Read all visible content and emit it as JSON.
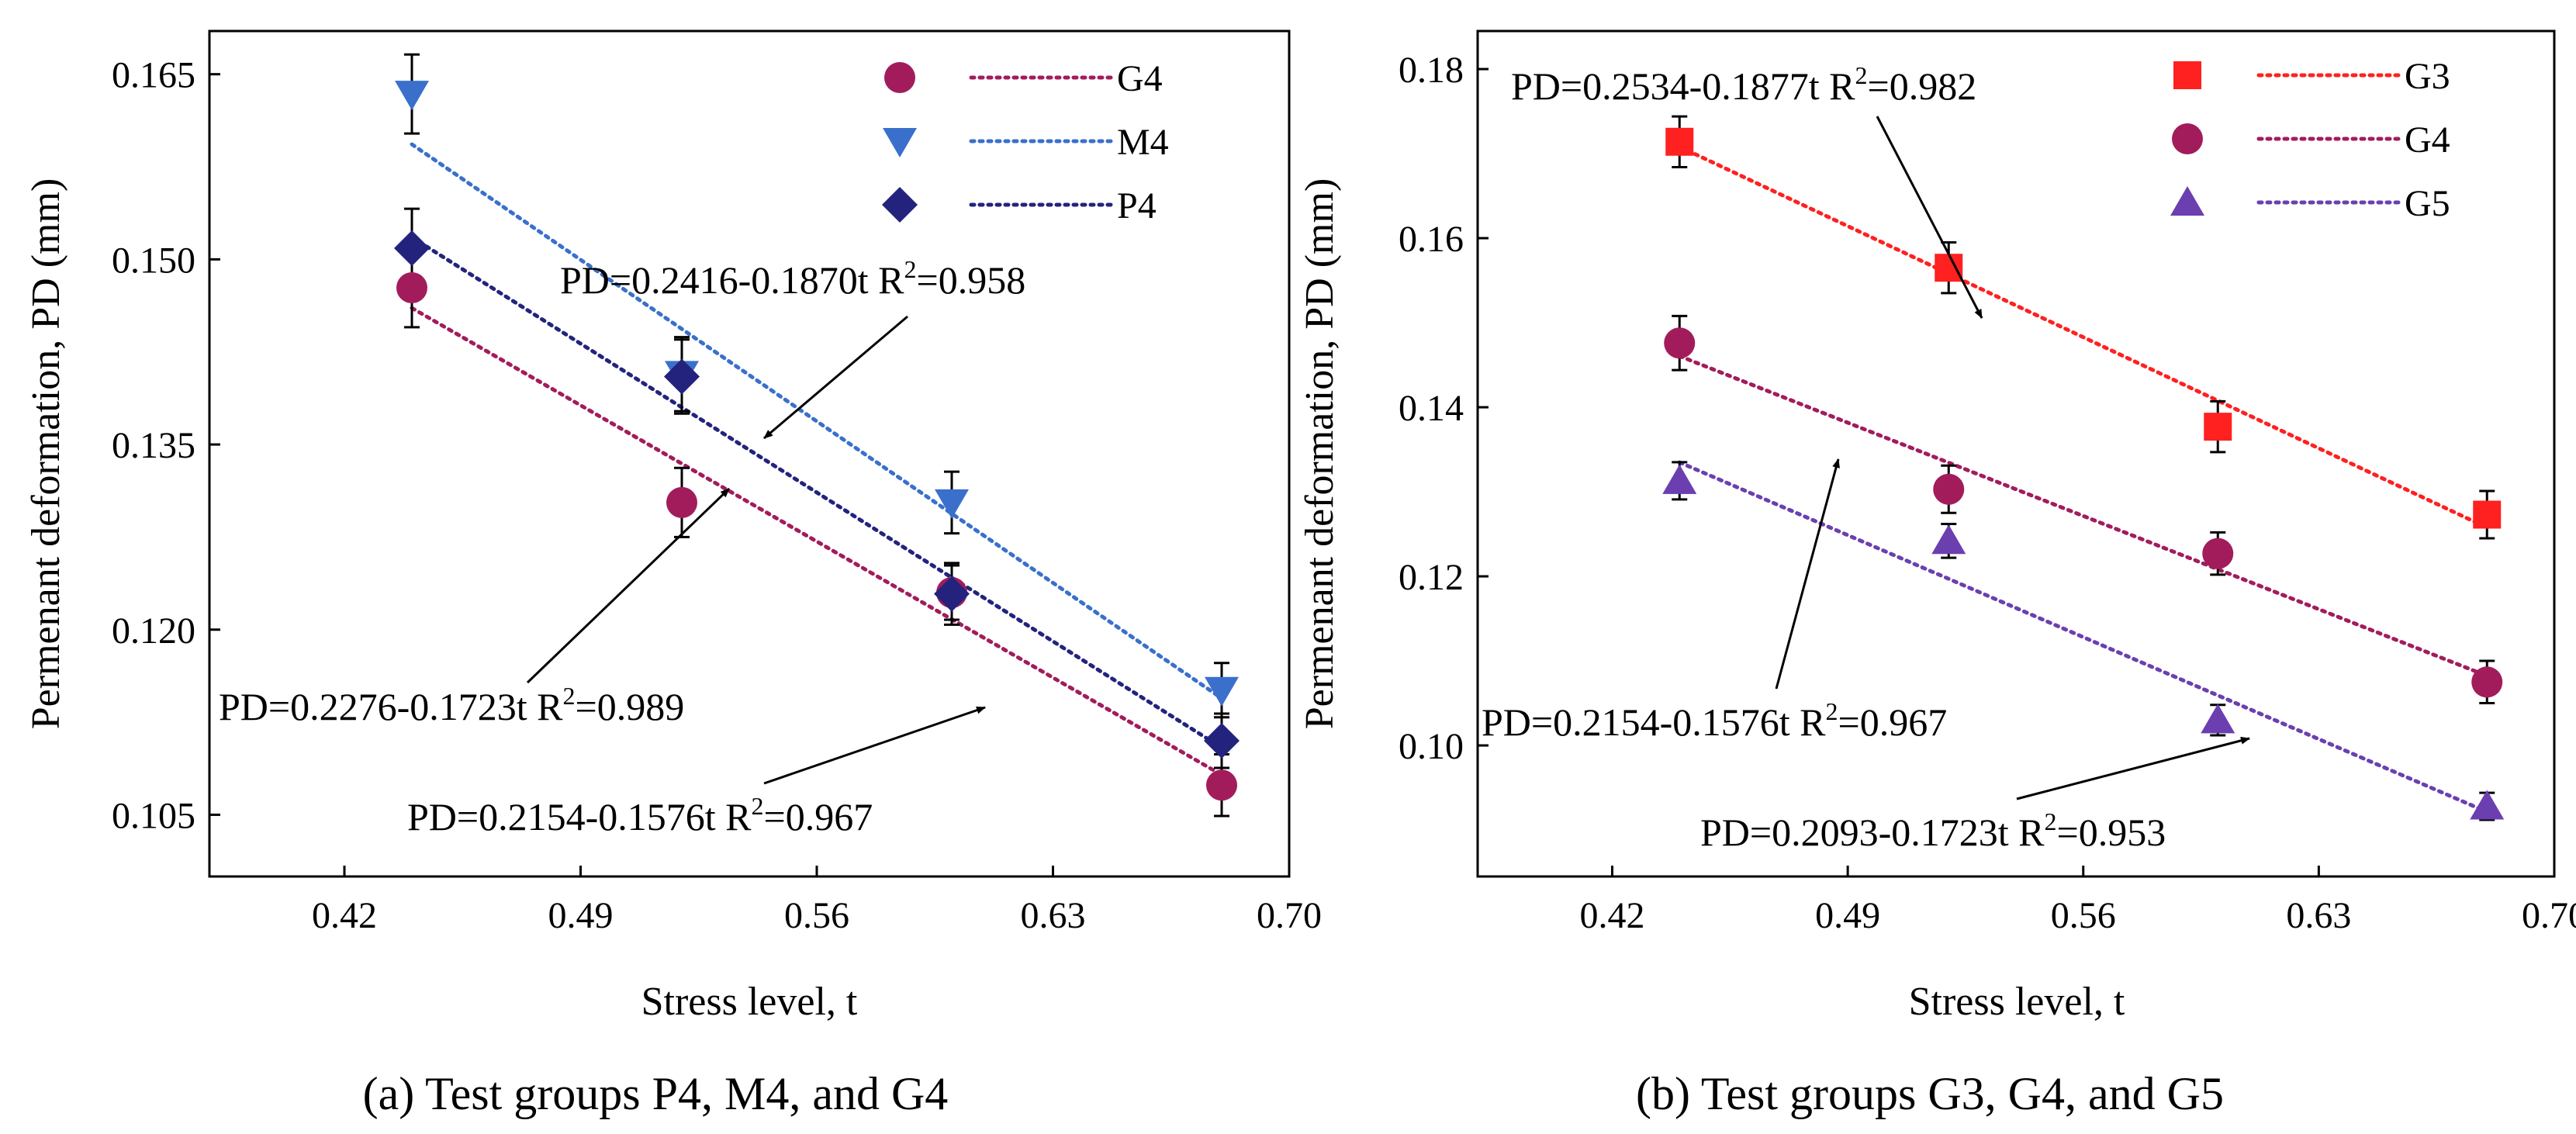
{
  "chart_data": [
    {
      "type": "scatter",
      "panel": "a",
      "caption": "(a) Test groups P4, M4, and G4",
      "xlabel": "Stress level, t",
      "ylabel": "Permenant deformation, PD (mm)",
      "xlim": [
        0.38,
        0.7
      ],
      "ylim": [
        0.1,
        0.1685
      ],
      "xticks": [
        "0.42",
        "0.49",
        "0.56",
        "0.63",
        "0.70"
      ],
      "yticks": [
        "0.105",
        "0.120",
        "0.135",
        "0.150",
        "0.165"
      ],
      "x": [
        0.44,
        0.52,
        0.6,
        0.68
      ],
      "series": [
        {
          "name": "G4",
          "marker": "circle",
          "color": "#a21c5c",
          "values": [
            0.1477,
            0.1303,
            0.123,
            0.1074
          ],
          "err": [
            0.0032,
            0.0028,
            0.0022,
            0.0025
          ],
          "fit": {
            "a": 0.2154,
            "b": -0.1576
          }
        },
        {
          "name": "M4",
          "marker": "triangle-down",
          "color": "#3a70cc",
          "values": [
            0.1634,
            0.1407,
            0.1303,
            0.1151
          ],
          "err": [
            0.0032,
            0.003,
            0.0025,
            0.0022
          ],
          "fit": {
            "a": 0.2416,
            "b": -0.187
          }
        },
        {
          "name": "P4",
          "marker": "diamond",
          "color": "#23237e",
          "values": [
            0.1509,
            0.1405,
            0.1229,
            0.111
          ],
          "err": [
            0.0032,
            0.003,
            0.0025,
            0.0022
          ],
          "fit": {
            "a": 0.2276,
            "b": -0.1723
          }
        }
      ],
      "annotations": [
        {
          "id": "eq-m4",
          "label": "PD=0.2416-0.1870t  R",
          "sup": "2",
          "tail": "=0.958"
        },
        {
          "id": "eq-p4",
          "label": "PD=0.2276-0.1723t  R",
          "sup": "2",
          "tail": "=0.989"
        },
        {
          "id": "eq-g4",
          "label": "PD=0.2154-0.1576t  R",
          "sup": "2",
          "tail": "=0.967"
        }
      ]
    },
    {
      "type": "scatter",
      "panel": "b",
      "caption": "(b) Test groups G3, G4, and G5",
      "xlabel": "Stress level, t",
      "ylabel": "Permenant deformation, PD (mm)",
      "xlim": [
        0.38,
        0.7
      ],
      "ylim": [
        0.0845,
        0.1845
      ],
      "xticks": [
        "0.42",
        "0.49",
        "0.56",
        "0.63",
        "0.70"
      ],
      "yticks": [
        "0.10",
        "0.12",
        "0.14",
        "0.16",
        "0.18"
      ],
      "x": [
        0.44,
        0.52,
        0.6,
        0.68
      ],
      "series": [
        {
          "name": "G3",
          "marker": "square",
          "color": "#ff2020",
          "values": [
            0.1714,
            0.1565,
            0.1377,
            0.1273
          ],
          "err": [
            0.003,
            0.003,
            0.003,
            0.0028
          ],
          "fit": {
            "a": 0.2534,
            "b": -0.1877
          }
        },
        {
          "name": "G4",
          "marker": "circle",
          "color": "#a21c5c",
          "values": [
            0.1476,
            0.1303,
            0.1227,
            0.1075
          ],
          "err": [
            0.0032,
            0.0028,
            0.0025,
            0.0025
          ],
          "fit": {
            "a": 0.2154,
            "b": -0.1576
          }
        },
        {
          "name": "G5",
          "marker": "triangle-up",
          "color": "#6b3fb0",
          "values": [
            0.1313,
            0.1242,
            0.103,
            0.0928
          ],
          "err": [
            0.0022,
            0.002,
            0.0018,
            0.0016
          ],
          "fit": {
            "a": 0.2093,
            "b": -0.1723
          }
        }
      ],
      "annotations": [
        {
          "id": "eq-g3",
          "label": "PD=0.2534-0.1877t  R",
          "sup": "2",
          "tail": "=0.982"
        },
        {
          "id": "eq-g4b",
          "label": "PD=0.2154-0.1576t  R",
          "sup": "2",
          "tail": "=0.967"
        },
        {
          "id": "eq-g5",
          "label": "PD=0.2093-0.1723t  R",
          "sup": "2",
          "tail": "=0.953"
        }
      ]
    }
  ]
}
